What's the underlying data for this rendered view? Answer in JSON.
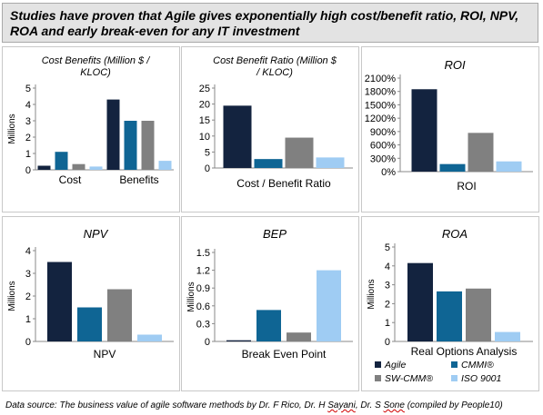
{
  "title": "Studies have proven that Agile gives exponentially high cost/benefit ratio, ROI, NPV, ROA and early break-even  for any IT investment",
  "footer": {
    "prefix": "Data source: The business value of agile software methods by Dr. F Rico, Dr. H ",
    "sayani": "Sayani",
    "middle": ", Dr. S ",
    "sone": "Sone",
    "suffix": " (compiled by People10)"
  },
  "colors": {
    "Agile": "#13233f",
    "CMMI®": "#0f6594",
    "SW-CMM®": "#808080",
    "ISO 9001": "#9fccf3"
  },
  "chart_data": [
    {
      "type": "bar",
      "title": "Cost Benefits (Million $ / KLOC)",
      "ylabel": "Millions",
      "ylim": [
        0,
        5
      ],
      "yticks": [
        "0",
        "1",
        "2",
        "3",
        "4",
        "5"
      ],
      "categories": [
        "Cost",
        "Benefits"
      ],
      "series": [
        {
          "name": "Agile",
          "values": [
            0.25,
            4.3
          ]
        },
        {
          "name": "CMMI®",
          "values": [
            1.1,
            3.0
          ]
        },
        {
          "name": "SW-CMM®",
          "values": [
            0.35,
            3.0
          ]
        },
        {
          "name": "ISO 9001",
          "values": [
            0.2,
            0.55
          ]
        }
      ]
    },
    {
      "type": "bar",
      "title": "Cost Benefit Ratio (Million $ / KLOC)",
      "ylabel": "",
      "ylim": [
        0,
        25
      ],
      "yticks": [
        "0",
        "5",
        "10",
        "15",
        "20",
        "25"
      ],
      "categories": [
        "Cost / Benefit Ratio"
      ],
      "series": [
        {
          "name": "Agile",
          "values": [
            19.5
          ]
        },
        {
          "name": "CMMI®",
          "values": [
            2.8
          ]
        },
        {
          "name": "SW-CMM®",
          "values": [
            9.5
          ]
        },
        {
          "name": "ISO 9001",
          "values": [
            3.3
          ]
        }
      ]
    },
    {
      "type": "bar",
      "title": "ROI",
      "ylabel": "",
      "ylim": [
        0,
        2100
      ],
      "yticks": [
        "0%",
        "300%",
        "600%",
        "900%",
        "1200%",
        "1500%",
        "1800%",
        "2100%"
      ],
      "categories": [
        "ROI"
      ],
      "series": [
        {
          "name": "Agile",
          "values": [
            1850
          ]
        },
        {
          "name": "CMMI®",
          "values": [
            170
          ]
        },
        {
          "name": "SW-CMM®",
          "values": [
            870
          ]
        },
        {
          "name": "ISO 9001",
          "values": [
            230
          ]
        }
      ]
    },
    {
      "type": "bar",
      "title": "NPV",
      "ylabel": "Millions",
      "ylim": [
        0,
        4
      ],
      "yticks": [
        "0",
        "1",
        "2",
        "3",
        "4"
      ],
      "categories": [
        "NPV"
      ],
      "series": [
        {
          "name": "Agile",
          "values": [
            3.5
          ]
        },
        {
          "name": "CMMI®",
          "values": [
            1.5
          ]
        },
        {
          "name": "SW-CMM®",
          "values": [
            2.3
          ]
        },
        {
          "name": "ISO 9001",
          "values": [
            0.3
          ]
        }
      ]
    },
    {
      "type": "bar",
      "title": "BEP",
      "ylabel": "Millions",
      "ylim": [
        0,
        1.5
      ],
      "yticks": [
        "0",
        "0.3",
        "0.6",
        "0.9",
        "1.2",
        "1.5"
      ],
      "categories": [
        "Break Even Point"
      ],
      "series": [
        {
          "name": "Agile",
          "values": [
            0.02
          ]
        },
        {
          "name": "CMMI®",
          "values": [
            0.53
          ]
        },
        {
          "name": "SW-CMM®",
          "values": [
            0.15
          ]
        },
        {
          "name": "ISO 9001",
          "values": [
            1.2
          ]
        }
      ]
    },
    {
      "type": "bar",
      "title": "ROA",
      "ylabel": "Millions",
      "ylim": [
        0,
        5
      ],
      "yticks": [
        "0",
        "1",
        "2",
        "3",
        "4",
        "5"
      ],
      "categories": [
        "Real Options Analysis"
      ],
      "legend": [
        "Agile",
        "CMMI®",
        "SW-CMM®",
        "ISO 9001"
      ],
      "legend_position": "bottom",
      "series": [
        {
          "name": "Agile",
          "values": [
            4.15
          ]
        },
        {
          "name": "CMMI®",
          "values": [
            2.65
          ]
        },
        {
          "name": "SW-CMM®",
          "values": [
            2.8
          ]
        },
        {
          "name": "ISO 9001",
          "values": [
            0.5
          ]
        }
      ]
    }
  ]
}
